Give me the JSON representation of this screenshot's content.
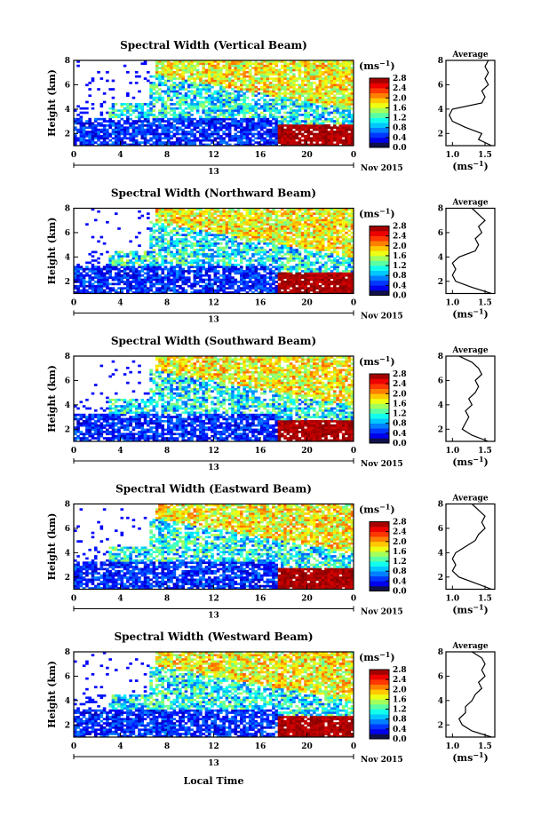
{
  "chart_data": [
    {
      "type": "heatmap",
      "title": "Spectral Width (Vertical Beam)",
      "ylabel": "Height (km)",
      "yticks": [
        "8",
        "6",
        "4",
        "2"
      ],
      "ylim": [
        1,
        8
      ],
      "xticks": [
        "0",
        "4",
        "8",
        "12",
        "16",
        "20",
        "0"
      ],
      "xlim": [
        0,
        24
      ],
      "day_label": "13",
      "month_label": "Nov 2015",
      "colorbar": {
        "unit": "(ms",
        "unit_sup": "−1",
        "ticks": [
          "2.8",
          "2.4",
          "2.0",
          "1.6",
          "1.2",
          "0.8",
          "0.4",
          "0.0"
        ],
        "range": [
          0,
          2.8
        ]
      },
      "avg": {
        "title": "Average",
        "yticks": [
          "8",
          "6",
          "4",
          "2"
        ],
        "xticks": [
          "1.0",
          "1.5"
        ],
        "xlim": [
          0.9,
          1.65
        ],
        "ylim": [
          1,
          8
        ],
        "xunit": "(ms",
        "xunit_sup": "−1",
        "heights": [
          1.0,
          1.5,
          2.0,
          2.5,
          3.0,
          3.5,
          4.0,
          4.5,
          5.0,
          5.5,
          6.0,
          6.5,
          7.0,
          7.5,
          8.0
        ],
        "values": [
          1.6,
          1.4,
          1.45,
          1.2,
          1.0,
          0.95,
          1.0,
          1.45,
          1.5,
          1.45,
          1.55,
          1.5,
          1.55,
          1.5,
          1.55
        ]
      }
    },
    {
      "type": "heatmap",
      "title": "Spectral Width (Northward Beam)",
      "ylabel": "Height (km)",
      "yticks": [
        "8",
        "6",
        "4",
        "2"
      ],
      "ylim": [
        1,
        8
      ],
      "xticks": [
        "0",
        "4",
        "8",
        "12",
        "16",
        "20",
        "0"
      ],
      "xlim": [
        0,
        24
      ],
      "day_label": "13",
      "month_label": "Nov 2015",
      "colorbar": {
        "unit": "(ms",
        "unit_sup": "−1",
        "ticks": [
          "2.8",
          "2.4",
          "2.0",
          "1.6",
          "1.2",
          "0.8",
          "0.4",
          "0.0"
        ],
        "range": [
          0,
          2.8
        ]
      },
      "avg": {
        "title": "Average",
        "yticks": [
          "8",
          "6",
          "4",
          "2"
        ],
        "xticks": [
          "1.0",
          "1.5"
        ],
        "xlim": [
          0.9,
          1.65
        ],
        "ylim": [
          1,
          8
        ],
        "xunit": "(ms",
        "xunit_sup": "−1",
        "heights": [
          1.0,
          1.5,
          2.0,
          2.5,
          3.0,
          3.5,
          4.0,
          4.5,
          5.0,
          5.5,
          6.0,
          6.5,
          7.0,
          7.5,
          8.0
        ],
        "values": [
          1.6,
          1.3,
          1.05,
          1.0,
          1.05,
          1.0,
          1.1,
          1.35,
          1.4,
          1.35,
          1.45,
          1.4,
          1.5,
          1.4,
          1.3
        ]
      }
    },
    {
      "type": "heatmap",
      "title": "Spectral Width (Southward Beam)",
      "ylabel": "Height (km)",
      "yticks": [
        "8",
        "6",
        "4",
        "2"
      ],
      "ylim": [
        1,
        8
      ],
      "xticks": [
        "0",
        "4",
        "8",
        "12",
        "16",
        "20",
        "0"
      ],
      "xlim": [
        0,
        24
      ],
      "day_label": "13",
      "month_label": "Nov 2015",
      "colorbar": {
        "unit": "(ms",
        "unit_sup": "−1",
        "ticks": [
          "2.8",
          "2.4",
          "2.0",
          "1.6",
          "1.2",
          "0.8",
          "0.4",
          "0.0"
        ],
        "range": [
          0,
          2.8
        ]
      },
      "avg": {
        "title": "Average",
        "yticks": [
          "8",
          "6",
          "4",
          "2"
        ],
        "xticks": [
          "1.0",
          "1.5"
        ],
        "xlim": [
          0.9,
          1.65
        ],
        "ylim": [
          1,
          8
        ],
        "xunit": "(ms",
        "xunit_sup": "−1",
        "heights": [
          1.0,
          1.5,
          2.0,
          2.5,
          3.0,
          3.5,
          4.0,
          4.5,
          5.0,
          5.5,
          6.0,
          6.5,
          7.0,
          7.5,
          8.0
        ],
        "values": [
          1.55,
          1.3,
          1.15,
          1.2,
          1.25,
          1.2,
          1.3,
          1.25,
          1.35,
          1.4,
          1.35,
          1.45,
          1.4,
          1.3,
          1.1
        ]
      }
    },
    {
      "type": "heatmap",
      "title": "Spectral Width (Eastward Beam)",
      "ylabel": "Height (km)",
      "yticks": [
        "8",
        "6",
        "4",
        "2"
      ],
      "ylim": [
        1,
        8
      ],
      "xticks": [
        "0",
        "4",
        "8",
        "12",
        "16",
        "20",
        "0"
      ],
      "xlim": [
        0,
        24
      ],
      "day_label": "13",
      "month_label": "Nov 2015",
      "colorbar": {
        "unit": "(ms",
        "unit_sup": "−1",
        "ticks": [
          "2.8",
          "2.4",
          "2.0",
          "1.6",
          "1.2",
          "0.8",
          "0.4",
          "0.0"
        ],
        "range": [
          0,
          2.8
        ]
      },
      "avg": {
        "title": "Average",
        "yticks": [
          "8",
          "6",
          "4",
          "2"
        ],
        "xticks": [
          "1.0",
          "1.5"
        ],
        "xlim": [
          0.9,
          1.65
        ],
        "ylim": [
          1,
          8
        ],
        "xunit": "(ms",
        "xunit_sup": "−1",
        "heights": [
          1.0,
          1.5,
          2.0,
          2.5,
          3.0,
          3.5,
          4.0,
          4.5,
          5.0,
          5.5,
          6.0,
          6.5,
          7.0,
          7.5,
          8.0
        ],
        "values": [
          1.6,
          1.35,
          1.1,
          1.0,
          1.05,
          1.0,
          1.05,
          1.2,
          1.35,
          1.4,
          1.5,
          1.45,
          1.5,
          1.4,
          1.3
        ]
      }
    },
    {
      "type": "heatmap",
      "title": "Spectral Width (Westward Beam)",
      "ylabel": "Height (km)",
      "yticks": [
        "8",
        "6",
        "4",
        "2"
      ],
      "ylim": [
        1,
        8
      ],
      "xticks": [
        "0",
        "4",
        "8",
        "12",
        "16",
        "20",
        "0"
      ],
      "xlim": [
        0,
        24
      ],
      "day_label": "13",
      "month_label": "Nov 2015",
      "xlabel": "Local Time",
      "colorbar": {
        "unit": "(ms",
        "unit_sup": "−1",
        "ticks": [
          "2.8",
          "2.4",
          "2.0",
          "1.6",
          "1.2",
          "0.8",
          "0.4",
          "0.0"
        ],
        "range": [
          0,
          2.8
        ]
      },
      "avg": {
        "title": "Average",
        "yticks": [
          "8",
          "6",
          "4",
          "2"
        ],
        "xticks": [
          "1.0",
          "1.5"
        ],
        "xlim": [
          0.9,
          1.65
        ],
        "ylim": [
          1,
          8
        ],
        "xunit": "(ms",
        "xunit_sup": "−1",
        "heights": [
          1.0,
          1.5,
          2.0,
          2.5,
          3.0,
          3.5,
          4.0,
          4.5,
          5.0,
          5.5,
          6.0,
          6.5,
          7.0,
          7.5,
          8.0
        ],
        "values": [
          1.6,
          1.3,
          1.15,
          1.1,
          1.2,
          1.2,
          1.3,
          1.35,
          1.45,
          1.4,
          1.5,
          1.45,
          1.5,
          1.45,
          1.3
        ]
      }
    }
  ]
}
